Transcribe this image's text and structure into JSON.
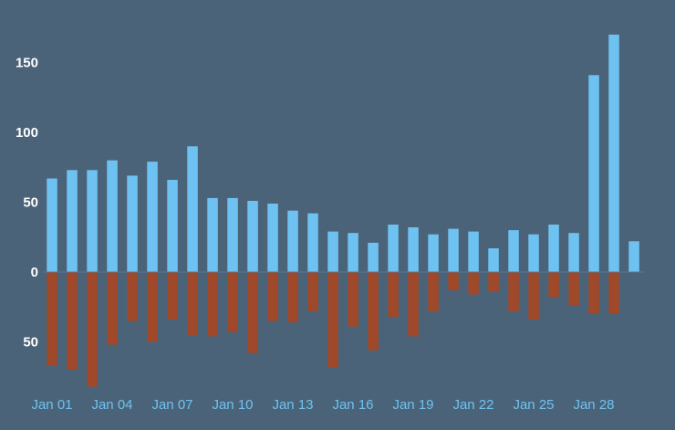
{
  "chart_data": {
    "type": "bar",
    "categories": [
      "Jan 01",
      "Jan 02",
      "Jan 03",
      "Jan 04",
      "Jan 05",
      "Jan 06",
      "Jan 07",
      "Jan 08",
      "Jan 09",
      "Jan 10",
      "Jan 11",
      "Jan 12",
      "Jan 13",
      "Jan 14",
      "Jan 15",
      "Jan 16",
      "Jan 17",
      "Jan 18",
      "Jan 19",
      "Jan 20",
      "Jan 21",
      "Jan 22",
      "Jan 23",
      "Jan 24",
      "Jan 25",
      "Jan 26",
      "Jan 27",
      "Jan 28",
      "Jan 29",
      "Jan 30"
    ],
    "x_tick_labels": [
      "Jan 01",
      "Jan 04",
      "Jan 07",
      "Jan 10",
      "Jan 13",
      "Jan 16",
      "Jan 19",
      "Jan 22",
      "Jan 25",
      "Jan 28"
    ],
    "y_tick_labels": [
      "50",
      "0",
      "50",
      "100",
      "150"
    ],
    "y_tick_values": [
      -50,
      0,
      50,
      100,
      150
    ],
    "ylim": [
      -85,
      175
    ],
    "grid": false,
    "legend": "none",
    "series": [
      {
        "color": "#6ec2f2",
        "values": [
          67,
          73,
          73,
          80,
          69,
          79,
          66,
          90,
          53,
          53,
          51,
          49,
          44,
          42,
          29,
          28,
          21,
          34,
          32,
          27,
          31,
          29,
          17,
          30,
          27,
          34,
          28,
          141,
          170,
          22
        ]
      },
      {
        "color": "#a0482a",
        "values": [
          -67,
          -70,
          -82,
          -52,
          -35,
          -50,
          -34,
          -45,
          -46,
          -43,
          -58,
          -35,
          -36,
          -28,
          -68,
          -39,
          -56,
          -32,
          -46,
          -28,
          -13,
          -16,
          -14,
          -28,
          -34,
          -18,
          -24,
          -30,
          -30,
          0
        ]
      }
    ]
  }
}
